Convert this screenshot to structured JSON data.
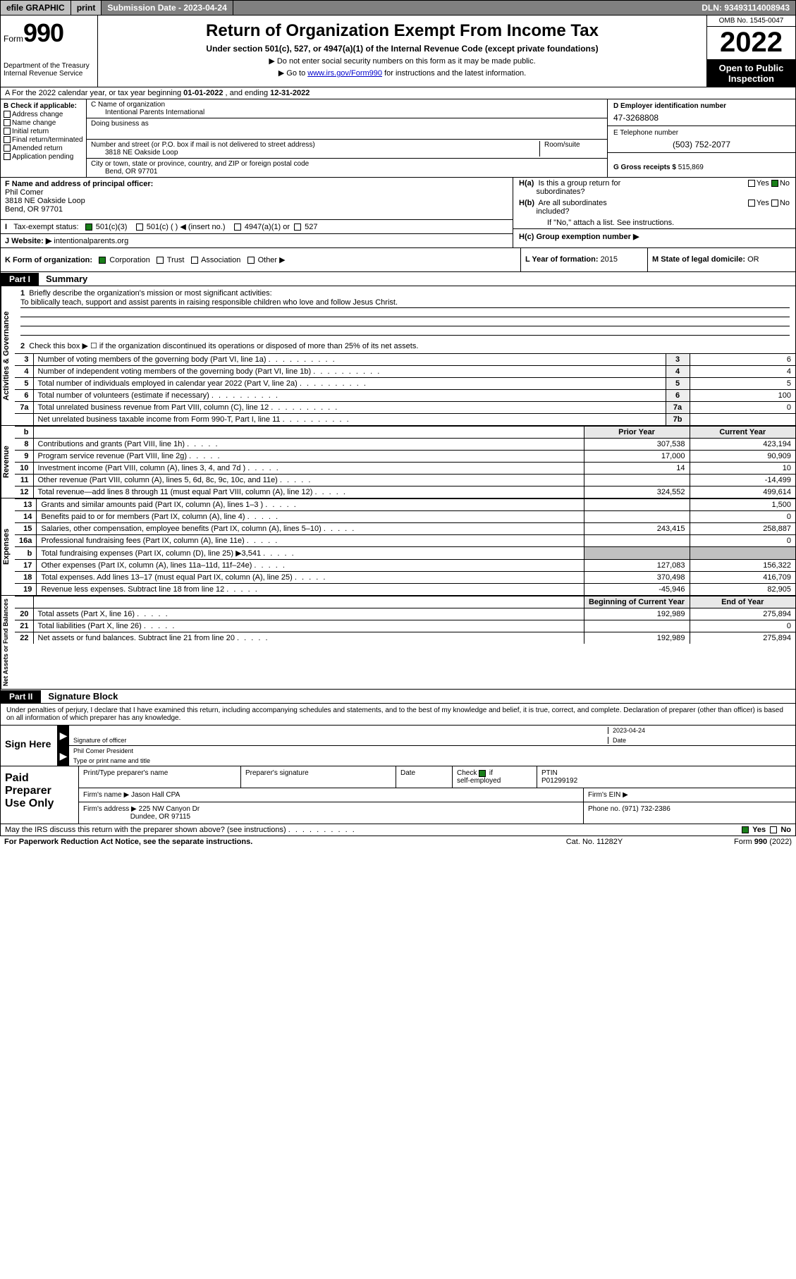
{
  "topbar": {
    "efile": "efile GRAPHIC",
    "print": "print",
    "subdate_label": "Submission Date - 2023-04-24",
    "dln": "DLN: 93493114008943"
  },
  "header": {
    "form_word": "Form",
    "form_num": "990",
    "dept": "Department of the Treasury\nInternal Revenue Service",
    "title": "Return of Organization Exempt From Income Tax",
    "sub": "Under section 501(c), 527, or 4947(a)(1) of the Internal Revenue Code (except private foundations)",
    "note1": "▶ Do not enter social security numbers on this form as it may be made public.",
    "note2_pre": "▶ Go to ",
    "note2_link": "www.irs.gov/Form990",
    "note2_post": " for instructions and the latest information.",
    "omb": "OMB No. 1545-0047",
    "year": "2022",
    "otp": "Open to Public Inspection"
  },
  "secA": {
    "text_pre": "A For the 2022 calendar year, or tax year beginning ",
    "begin": "01-01-2022",
    "mid": " , and ending ",
    "end": "12-31-2022"
  },
  "colB": {
    "hdr": "B Check if applicable:",
    "items": [
      "Address change",
      "Name change",
      "Initial return",
      "Final return/terminated",
      "Amended return",
      "Application pending"
    ]
  },
  "colC": {
    "name_lbl": "C Name of organization",
    "name": "Intentional Parents International",
    "dba_lbl": "Doing business as",
    "addr_lbl": "Number and street (or P.O. box if mail is not delivered to street address)",
    "addr": "3818 NE Oakside Loop",
    "room_lbl": "Room/suite",
    "city_lbl": "City or town, state or province, country, and ZIP or foreign postal code",
    "city": "Bend, OR  97701"
  },
  "colD": {
    "d_lbl": "D Employer identification number",
    "ein": "47-3268808",
    "e_lbl": "E Telephone number",
    "phone": "(503) 752-2077",
    "g_lbl": "G Gross receipts $ ",
    "gross": "515,869"
  },
  "secF": {
    "lbl": "F Name and address of principal officer:",
    "name": "Phil Comer",
    "addr1": "3818 NE Oakside Loop",
    "addr2": "Bend, OR  97701"
  },
  "secH": {
    "ha": "H(a)  Is this a group return for subordinates?",
    "hb": "H(b)  Are all subordinates included?",
    "hb_note": "If \"No,\" attach a list. See instructions.",
    "hc": "H(c)  Group exemption number ▶",
    "yes": "Yes",
    "no": "No"
  },
  "secI": {
    "lbl": "Tax-exempt status:",
    "o1": "501(c)(3)",
    "o2": "501(c) (  ) ◀ (insert no.)",
    "o3": "4947(a)(1) or",
    "o4": "527"
  },
  "secJ": {
    "lbl": "J   Website: ▶ ",
    "val": "intentionalparents.org"
  },
  "secK": {
    "lbl": "K Form of organization:",
    "o1": "Corporation",
    "o2": "Trust",
    "o3": "Association",
    "o4": "Other ▶"
  },
  "secL": {
    "lbl": "L Year of formation: ",
    "val": "2015"
  },
  "secM": {
    "lbl": "M State of legal domicile: ",
    "val": "OR"
  },
  "part1": {
    "tag": "Part I",
    "title": "Summary"
  },
  "mission": {
    "q1_num": "1",
    "q1": "Briefly describe the organization's mission or most significant activities:",
    "text": "To biblically teach, support and assist parents in raising responsible children who love and follow Jesus Christ.",
    "q2_num": "2",
    "q2": "Check this box ▶ ☐  if the organization discontinued its operations or disposed of more than 25% of its net assets."
  },
  "gov_rows": [
    {
      "n": "3",
      "t": "Number of voting members of the governing body (Part VI, line 1a)",
      "box": "3",
      "v": "6"
    },
    {
      "n": "4",
      "t": "Number of independent voting members of the governing body (Part VI, line 1b)",
      "box": "4",
      "v": "4"
    },
    {
      "n": "5",
      "t": "Total number of individuals employed in calendar year 2022 (Part V, line 2a)",
      "box": "5",
      "v": "5"
    },
    {
      "n": "6",
      "t": "Total number of volunteers (estimate if necessary)",
      "box": "6",
      "v": "100"
    },
    {
      "n": "7a",
      "t": "Total unrelated business revenue from Part VIII, column (C), line 12",
      "box": "7a",
      "v": "0"
    },
    {
      "n": "",
      "t": "Net unrelated business taxable income from Form 990-T, Part I, line 11",
      "box": "7b",
      "v": ""
    }
  ],
  "rev_hdr": {
    "b": "b",
    "py": "Prior Year",
    "cy": "Current Year"
  },
  "rev_rows": [
    {
      "n": "8",
      "t": "Contributions and grants (Part VIII, line 1h)",
      "py": "307,538",
      "cy": "423,194"
    },
    {
      "n": "9",
      "t": "Program service revenue (Part VIII, line 2g)",
      "py": "17,000",
      "cy": "90,909"
    },
    {
      "n": "10",
      "t": "Investment income (Part VIII, column (A), lines 3, 4, and 7d )",
      "py": "14",
      "cy": "10"
    },
    {
      "n": "11",
      "t": "Other revenue (Part VIII, column (A), lines 5, 6d, 8c, 9c, 10c, and 11e)",
      "py": "",
      "cy": "-14,499"
    },
    {
      "n": "12",
      "t": "Total revenue—add lines 8 through 11 (must equal Part VIII, column (A), line 12)",
      "py": "324,552",
      "cy": "499,614"
    }
  ],
  "exp_rows": [
    {
      "n": "13",
      "t": "Grants and similar amounts paid (Part IX, column (A), lines 1–3 )",
      "py": "",
      "cy": "1,500"
    },
    {
      "n": "14",
      "t": "Benefits paid to or for members (Part IX, column (A), line 4)",
      "py": "",
      "cy": "0"
    },
    {
      "n": "15",
      "t": "Salaries, other compensation, employee benefits (Part IX, column (A), lines 5–10)",
      "py": "243,415",
      "cy": "258,887"
    },
    {
      "n": "16a",
      "t": "Professional fundraising fees (Part IX, column (A), line 11e)",
      "py": "",
      "cy": "0"
    },
    {
      "n": "b",
      "t": "Total fundraising expenses (Part IX, column (D), line 25) ▶3,541",
      "py": "shade",
      "cy": "shade"
    },
    {
      "n": "17",
      "t": "Other expenses (Part IX, column (A), lines 11a–11d, 11f–24e)",
      "py": "127,083",
      "cy": "156,322"
    },
    {
      "n": "18",
      "t": "Total expenses. Add lines 13–17 (must equal Part IX, column (A), line 25)",
      "py": "370,498",
      "cy": "416,709"
    },
    {
      "n": "19",
      "t": "Revenue less expenses. Subtract line 18 from line 12",
      "py": "-45,946",
      "cy": "82,905"
    }
  ],
  "na_hdr": {
    "py": "Beginning of Current Year",
    "cy": "End of Year"
  },
  "na_rows": [
    {
      "n": "20",
      "t": "Total assets (Part X, line 16)",
      "py": "192,989",
      "cy": "275,894"
    },
    {
      "n": "21",
      "t": "Total liabilities (Part X, line 26)",
      "py": "",
      "cy": "0"
    },
    {
      "n": "22",
      "t": "Net assets or fund balances. Subtract line 21 from line 20",
      "py": "192,989",
      "cy": "275,894"
    }
  ],
  "vlabels": {
    "gov": "Activities & Governance",
    "rev": "Revenue",
    "exp": "Expenses",
    "na": "Net Assets or Fund Balances"
  },
  "part2": {
    "tag": "Part II",
    "title": "Signature Block"
  },
  "sig": {
    "decl": "Under penalties of perjury, I declare that I have examined this return, including accompanying schedules and statements, and to the best of my knowledge and belief, it is true, correct, and complete. Declaration of preparer (other than officer) is based on all information of which preparer has any knowledge.",
    "here": "Sign Here",
    "sig_of_officer": "Signature of officer",
    "date_lbl": "Date",
    "date": "2023-04-24",
    "name": "Phil Comer President",
    "name_lbl": "Type or print name and title"
  },
  "prep": {
    "lbl": "Paid Preparer Use Only",
    "h1": "Print/Type preparer's name",
    "h2": "Preparer's signature",
    "h3": "Date",
    "h4": "Check ☑ if self-employed",
    "h5": "PTIN",
    "ptin": "P01299192",
    "firm_lbl": "Firm's name   ▶",
    "firm": "Jason Hall CPA",
    "ein_lbl": "Firm's EIN ▶",
    "addr_lbl": "Firm's address ▶",
    "addr1": "225 NW Canyon Dr",
    "addr2": "Dundee, OR  97115",
    "phone_lbl": "Phone no. ",
    "phone": "(971) 732-2386"
  },
  "last": {
    "q": "May the IRS discuss this return with the preparer shown above? (see instructions)",
    "yes": "Yes",
    "no": "No"
  },
  "footer": {
    "l": "For Paperwork Reduction Act Notice, see the separate instructions.",
    "c": "Cat. No. 11282Y",
    "r": "Form 990 (2022)"
  }
}
